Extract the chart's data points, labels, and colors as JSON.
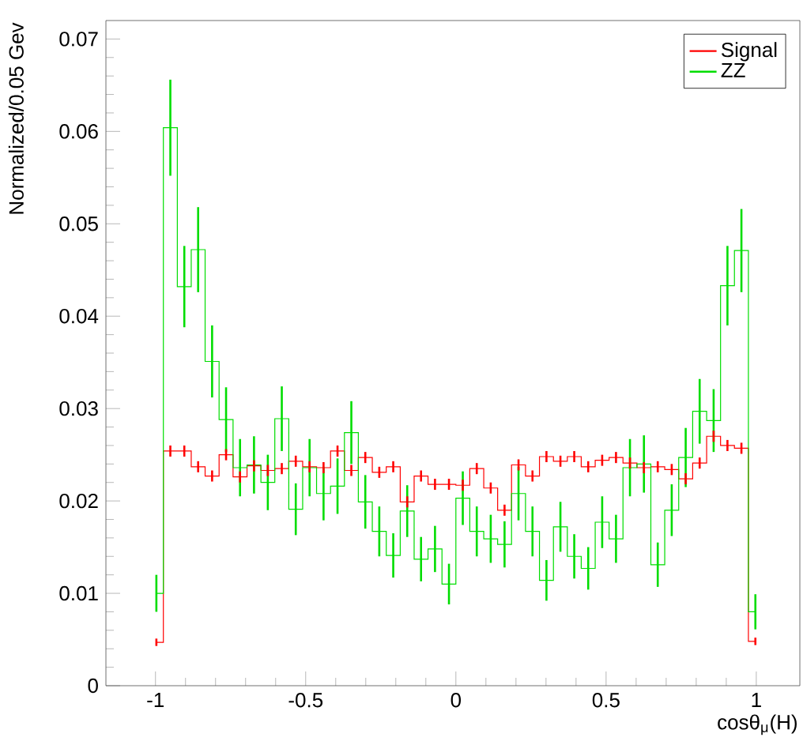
{
  "chart_data": {
    "type": "step",
    "xlabel": "cosθ$_{μ}$(H)",
    "ylabel": "Normalized/0.05 Gev",
    "x": [
      -0.997,
      -0.9505,
      -0.904,
      -0.858,
      -0.8115,
      -0.765,
      -0.7185,
      -0.672,
      -0.626,
      -0.5795,
      -0.533,
      -0.487,
      -0.4405,
      -0.394,
      -0.348,
      -0.3015,
      -0.255,
      -0.2085,
      -0.162,
      -0.116,
      -0.0695,
      -0.023,
      0.023,
      0.0695,
      0.116,
      0.162,
      0.2085,
      0.255,
      0.3015,
      0.348,
      0.394,
      0.4405,
      0.487,
      0.533,
      0.5795,
      0.626,
      0.672,
      0.7185,
      0.765,
      0.8115,
      0.858,
      0.904,
      0.9505,
      0.997
    ],
    "series": [
      {
        "name": "Signal",
        "color": "#ff0000",
        "values": [
          0.0047,
          0.0254,
          0.0254,
          0.0237,
          0.0227,
          0.025,
          0.0226,
          0.0238,
          0.0233,
          0.0235,
          0.0243,
          0.0237,
          0.0236,
          0.0254,
          0.0233,
          0.0247,
          0.0231,
          0.0237,
          0.0199,
          0.0227,
          0.0218,
          0.0218,
          0.0217,
          0.0235,
          0.0214,
          0.019,
          0.0239,
          0.0227,
          0.0248,
          0.0243,
          0.0248,
          0.0237,
          0.0244,
          0.0247,
          0.0241,
          0.0236,
          0.0237,
          0.0234,
          0.0224,
          0.0241,
          0.027,
          0.026,
          0.0257,
          0.0048
        ],
        "errors": [
          0.0004,
          0.0006,
          0.0006,
          0.0006,
          0.0006,
          0.0006,
          0.0006,
          0.0006,
          0.0006,
          0.0006,
          0.0006,
          0.0006,
          0.0006,
          0.0006,
          0.0006,
          0.0006,
          0.0006,
          0.0006,
          0.0006,
          0.0006,
          0.0006,
          0.0006,
          0.0006,
          0.0006,
          0.0006,
          0.0006,
          0.0006,
          0.0006,
          0.0006,
          0.0006,
          0.0006,
          0.0006,
          0.0006,
          0.0006,
          0.0006,
          0.0006,
          0.0006,
          0.0006,
          0.0006,
          0.0006,
          0.0006,
          0.0006,
          0.0006,
          0.0004
        ]
      },
      {
        "name": "ZZ",
        "color": "#00dd00",
        "values": [
          0.01,
          0.0604,
          0.0432,
          0.0472,
          0.0351,
          0.0288,
          0.0236,
          0.0239,
          0.022,
          0.0289,
          0.0191,
          0.0236,
          0.0208,
          0.0216,
          0.0274,
          0.0199,
          0.0167,
          0.0141,
          0.0189,
          0.0137,
          0.0148,
          0.011,
          0.0203,
          0.0167,
          0.0159,
          0.0153,
          0.0208,
          0.0167,
          0.0114,
          0.0172,
          0.014,
          0.0127,
          0.0177,
          0.0159,
          0.0236,
          0.024,
          0.0131,
          0.019,
          0.0247,
          0.0297,
          0.0287,
          0.0433,
          0.0471,
          0.008
        ],
        "errors": [
          0.002,
          0.0052,
          0.0044,
          0.0046,
          0.0039,
          0.0035,
          0.0031,
          0.0031,
          0.003,
          0.0035,
          0.0028,
          0.0031,
          0.0029,
          0.003,
          0.0034,
          0.0029,
          0.0027,
          0.0024,
          0.0028,
          0.0024,
          0.0025,
          0.0022,
          0.0029,
          0.0027,
          0.0026,
          0.0025,
          0.0029,
          0.0027,
          0.0022,
          0.0027,
          0.0024,
          0.0023,
          0.0028,
          0.0026,
          0.0031,
          0.0031,
          0.0024,
          0.0028,
          0.0032,
          0.0035,
          0.0034,
          0.0043,
          0.0045,
          0.0019
        ]
      }
    ],
    "xlim": [
      -1.165,
      1.145
    ],
    "ylim": [
      0,
      0.072
    ],
    "xticks": [
      -1,
      -0.5,
      0,
      0.5,
      1
    ],
    "yticks": [
      0,
      0.01,
      0.02,
      0.03,
      0.04,
      0.05,
      0.06,
      0.07
    ],
    "legend": "top right"
  }
}
